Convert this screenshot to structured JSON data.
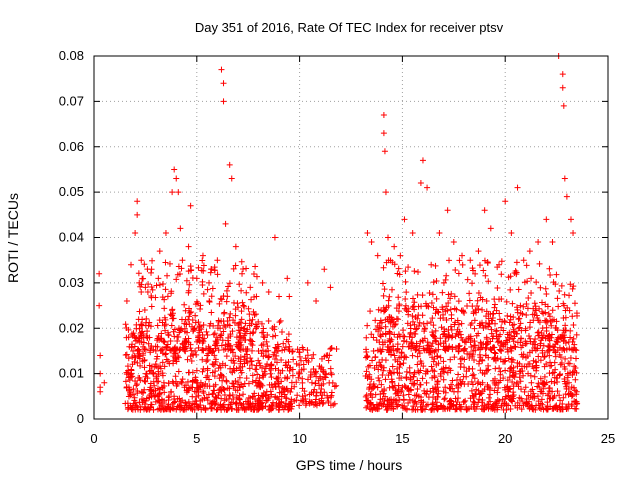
{
  "chart_data": {
    "type": "scatter",
    "title": "Day 351 of 2016, Rate Of TEC Index for receiver ptsv",
    "xlabel": "GPS time / hours",
    "ylabel": "ROTI / TECUs",
    "xlim": [
      0,
      25
    ],
    "ylim": [
      0,
      0.08
    ],
    "x_ticks": [
      "0",
      "5",
      "10",
      "15",
      "20",
      "25"
    ],
    "y_ticks": [
      "0",
      "0.01",
      "0.02",
      "0.03",
      "0.04",
      "0.05",
      "0.06",
      "0.07",
      "0.08"
    ],
    "x_tick_values": [
      0,
      5,
      10,
      15,
      20,
      25
    ],
    "y_tick_values": [
      0,
      0.01,
      0.02,
      0.03,
      0.04,
      0.05,
      0.06,
      0.07,
      0.08
    ],
    "grid": true,
    "marker": "+",
    "color": "#ff0000",
    "series": [
      {
        "name": "ROTI",
        "x": [
          0.25,
          0.25,
          0.3,
          0.3,
          0.3,
          0.3,
          1.6,
          1.8,
          2.0,
          2.1,
          2.1,
          2.2,
          2.3,
          2.5,
          2.8,
          3.2,
          3.5,
          3.8,
          3.9,
          4.0,
          4.1,
          4.2,
          4.3,
          4.6,
          4.7,
          5.0,
          5.3,
          5.7,
          6.0,
          6.2,
          6.3,
          6.3,
          6.4,
          6.6,
          6.7,
          6.9,
          7.2,
          7.6,
          7.9,
          8.2,
          8.5,
          8.8,
          9.0,
          9.4,
          9.5,
          10.4,
          10.8,
          11.2,
          11.5,
          13.3,
          13.5,
          13.8,
          14.1,
          14.1,
          14.15,
          14.2,
          14.3,
          14.6,
          14.9,
          15.1,
          15.5,
          15.9,
          16.0,
          16.2,
          16.4,
          16.8,
          17.2,
          17.5,
          17.9,
          18.3,
          18.7,
          19.0,
          19.3,
          19.7,
          20.0,
          20.3,
          20.6,
          20.9,
          21.2,
          21.6,
          22.0,
          22.3,
          22.6,
          22.8,
          22.8,
          22.85,
          22.9,
          23.0,
          23.2,
          23.3,
          0.5,
          1.7,
          2.6,
          3.4,
          4.4,
          5.2,
          6.1,
          7.1,
          8.0,
          8.7,
          9.2,
          10.6,
          11.0,
          13.4,
          14.5,
          15.2,
          16.6,
          17.7,
          18.9,
          19.9,
          21.0,
          21.8,
          22.5,
          23.1,
          1.9,
          2.4,
          3.0,
          3.6,
          4.5,
          5.5,
          6.5,
          7.4,
          8.3,
          9.1,
          10.2,
          11.3,
          13.6,
          14.4,
          15.4,
          16.1,
          17.0,
          18.0,
          19.1,
          20.2,
          21.4,
          22.1,
          22.9
        ],
        "y": [
          0.032,
          0.025,
          0.014,
          0.01,
          0.007,
          0.006,
          0.026,
          0.034,
          0.041,
          0.048,
          0.045,
          0.03,
          0.035,
          0.029,
          0.033,
          0.037,
          0.041,
          0.05,
          0.055,
          0.053,
          0.05,
          0.042,
          0.035,
          0.038,
          0.047,
          0.031,
          0.036,
          0.033,
          0.035,
          0.077,
          0.074,
          0.07,
          0.043,
          0.056,
          0.053,
          0.038,
          0.032,
          0.029,
          0.027,
          0.03,
          0.028,
          0.04,
          0.027,
          0.031,
          0.027,
          0.03,
          0.026,
          0.033,
          0.029,
          0.041,
          0.039,
          0.036,
          0.067,
          0.063,
          0.059,
          0.05,
          0.04,
          0.038,
          0.036,
          0.044,
          0.041,
          0.052,
          0.057,
          0.051,
          0.034,
          0.041,
          0.046,
          0.039,
          0.036,
          0.035,
          0.037,
          0.046,
          0.042,
          0.034,
          0.048,
          0.041,
          0.051,
          0.035,
          0.037,
          0.039,
          0.044,
          0.039,
          0.08,
          0.076,
          0.073,
          0.069,
          0.053,
          0.049,
          0.044,
          0.041,
          0.008,
          0.007,
          0.009,
          0.008,
          0.007,
          0.008,
          0.009,
          0.007,
          0.008,
          0.007,
          0.006,
          0.008,
          0.009,
          0.007,
          0.008,
          0.009,
          0.007,
          0.006,
          0.008,
          0.009,
          0.007,
          0.008,
          0.009,
          0.008,
          0.015,
          0.018,
          0.016,
          0.019,
          0.017,
          0.014,
          0.016,
          0.015,
          0.018,
          0.013,
          0.012,
          0.014,
          0.015,
          0.017,
          0.019,
          0.02,
          0.016,
          0.015,
          0.018,
          0.019,
          0.017,
          0.016,
          0.018
        ]
      }
    ],
    "dense_clusters": [
      {
        "x_range": [
          1.5,
          9.7
        ],
        "y_range": [
          0.002,
          0.022
        ],
        "count": 900
      },
      {
        "x_range": [
          9.7,
          11.8
        ],
        "y_range": [
          0.003,
          0.016
        ],
        "count": 120
      },
      {
        "x_range": [
          13.2,
          23.5
        ],
        "y_range": [
          0.002,
          0.025
        ],
        "count": 1100
      },
      {
        "x_range": [
          2.0,
          8.0
        ],
        "y_range": [
          0.015,
          0.035
        ],
        "count": 260
      },
      {
        "x_range": [
          14.0,
          23.5
        ],
        "y_range": [
          0.015,
          0.035
        ],
        "count": 320
      }
    ]
  }
}
